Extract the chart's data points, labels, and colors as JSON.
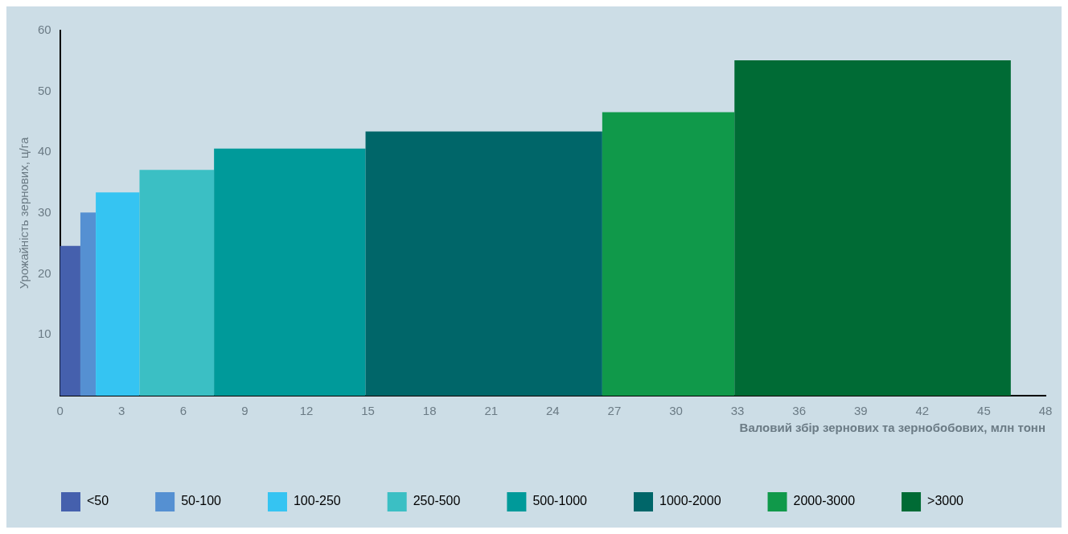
{
  "chart_data": {
    "type": "histogram",
    "xlabel": "Валовий збір зернових та зернобобових, млн тонн",
    "ylabel": "Урожайність зернових, ц/га",
    "bins": [
      0,
      0.99,
      1.74,
      3.87,
      7.5,
      14.88,
      26.41,
      32.85,
      46.31
    ],
    "series": [
      {
        "name": "<50",
        "color": "#4560ad",
        "values": [
          24.6,
          null,
          null,
          null,
          null,
          null,
          null,
          null
        ]
      },
      {
        "name": "50-100",
        "color": "#5590d2",
        "values": [
          null,
          30.1,
          null,
          null,
          null,
          null,
          null,
          null
        ]
      },
      {
        "name": "100-250",
        "color": "#35c4f2",
        "values": [
          null,
          null,
          33.4,
          null,
          null,
          null,
          null,
          null
        ]
      },
      {
        "name": "250-500",
        "color": "#3bbfc4",
        "values": [
          null,
          null,
          null,
          37.1,
          null,
          null,
          null,
          null
        ]
      },
      {
        "name": "500-1000",
        "color": "#009a9a",
        "values": [
          null,
          null,
          null,
          null,
          40.6,
          null,
          null,
          null
        ]
      },
      {
        "name": "1000-2000",
        "color": "#006669",
        "values": [
          null,
          null,
          null,
          null,
          null,
          43.4,
          null,
          null
        ]
      },
      {
        "name": "2000-3000",
        "color": "#10994a",
        "values": [
          null,
          null,
          null,
          null,
          null,
          null,
          46.6,
          null
        ]
      },
      {
        "name": ">3000",
        "color": "#006b35",
        "values": [
          null,
          null,
          null,
          null,
          null,
          null,
          null,
          55.1
        ]
      }
    ],
    "xlim": [
      0,
      48
    ],
    "xticks": [
      0,
      3,
      6,
      9,
      12,
      15,
      18,
      21,
      24,
      27,
      30,
      33,
      36,
      39,
      42,
      45,
      48
    ],
    "ylim": [
      0,
      60
    ],
    "yticks": [
      10,
      20,
      30,
      40,
      50,
      60
    ],
    "grid": false,
    "legend": "bottom"
  }
}
